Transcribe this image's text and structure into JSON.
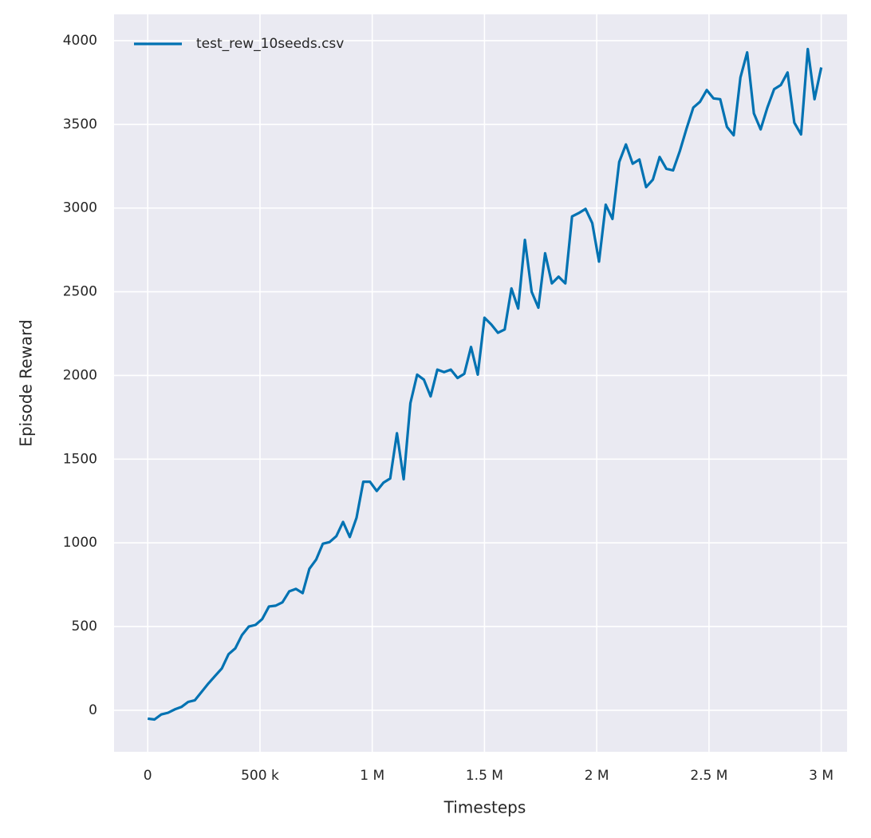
{
  "chart_data": {
    "type": "line",
    "xlabel": "Timesteps",
    "ylabel": "Episode Reward",
    "x": [
      0,
      30000,
      60000,
      90000,
      120000,
      150000,
      180000,
      210000,
      240000,
      270000,
      300000,
      330000,
      360000,
      390000,
      420000,
      450000,
      480000,
      510000,
      540000,
      570000,
      600000,
      630000,
      660000,
      690000,
      720000,
      750000,
      780000,
      810000,
      840000,
      870000,
      900000,
      930000,
      960000,
      990000,
      1020000,
      1050000,
      1080000,
      1110000,
      1140000,
      1170000,
      1200000,
      1230000,
      1260000,
      1290000,
      1320000,
      1350000,
      1380000,
      1410000,
      1440000,
      1470000,
      1500000,
      1530000,
      1560000,
      1590000,
      1620000,
      1650000,
      1680000,
      1710000,
      1740000,
      1770000,
      1800000,
      1830000,
      1860000,
      1890000,
      1920000,
      1950000,
      1980000,
      2010000,
      2040000,
      2070000,
      2100000,
      2130000,
      2160000,
      2190000,
      2220000,
      2250000,
      2280000,
      2310000,
      2340000,
      2370000,
      2400000,
      2430000,
      2460000,
      2490000,
      2520000,
      2550000,
      2580000,
      2610000,
      2640000,
      2670000,
      2700000,
      2730000,
      2760000,
      2790000,
      2820000,
      2850000,
      2880000,
      2910000,
      2940000,
      2970000,
      3000000
    ],
    "series": [
      {
        "name": "test_rew_10seeds.csv",
        "color": "#0072b2",
        "values": [
          -50,
          -55,
          -25,
          -15,
          5,
          20,
          50,
          60,
          110,
          160,
          205,
          250,
          335,
          370,
          450,
          500,
          510,
          545,
          620,
          625,
          645,
          710,
          725,
          700,
          845,
          900,
          995,
          1005,
          1040,
          1125,
          1035,
          1150,
          1365,
          1365,
          1310,
          1360,
          1385,
          1655,
          1380,
          1835,
          2005,
          1975,
          1875,
          2035,
          2020,
          2035,
          1985,
          2010,
          2170,
          2005,
          2345,
          2305,
          2255,
          2275,
          2520,
          2400,
          2810,
          2500,
          2405,
          2730,
          2550,
          2590,
          2550,
          2950,
          2970,
          2995,
          2910,
          2680,
          3020,
          2935,
          3275,
          3380,
          3265,
          3290,
          3125,
          3170,
          3305,
          3235,
          3225,
          3340,
          3475,
          3600,
          3635,
          3705,
          3655,
          3650,
          3485,
          3435,
          3780,
          3930,
          3565,
          3470,
          3600,
          3710,
          3735,
          3810,
          3510,
          3440,
          3950,
          3650,
          3840
        ]
      }
    ],
    "xlim": [
      -150000,
      3115000
    ],
    "xticks": [
      0,
      {
        "value": 500000,
        "label": "500 k"
      },
      {
        "value": 1000000,
        "label": "1 M"
      },
      {
        "value": 1500000,
        "label": "1.5 M"
      },
      {
        "value": 2000000,
        "label": "2 M"
      },
      {
        "value": 2500000,
        "label": "2.5 M"
      },
      {
        "value": 3000000,
        "label": "3 M"
      }
    ],
    "ylim": [
      -248,
      4157
    ],
    "yticks": [
      0,
      500,
      1000,
      1500,
      2000,
      2500,
      3000,
      3500,
      4000
    ],
    "grid": true,
    "legend": "upper left"
  }
}
